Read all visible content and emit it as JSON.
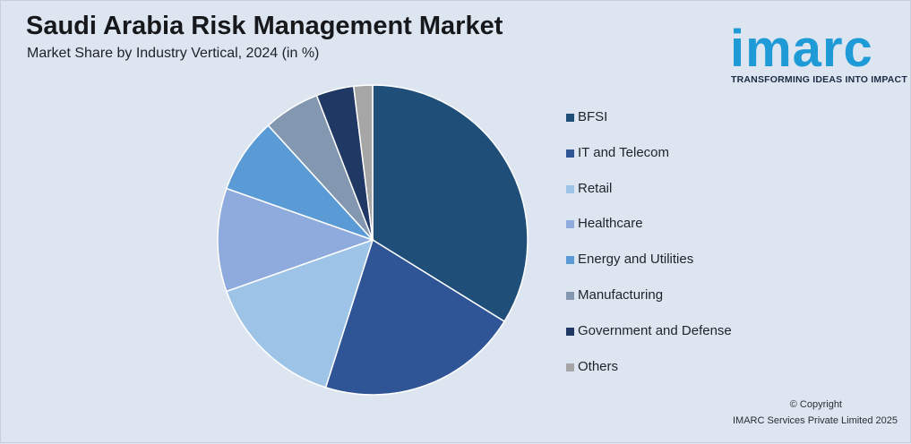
{
  "header": {
    "title": "Saudi Arabia Risk Management Market",
    "subtitle": "Market Share by Industry Vertical, 2024 (in %)"
  },
  "logo": {
    "word": "imarc",
    "tagline": "TRANSFORMING IDEAS INTO IMPACT",
    "color": "#1e9ad6"
  },
  "footer": {
    "copyright": "© Copyright",
    "company": "IMARC Services Private Limited 2025"
  },
  "chart_data": {
    "type": "pie",
    "title": "Saudi Arabia Risk Management Market",
    "subtitle": "Market Share by Industry Vertical, 2024 (in %)",
    "legend_position": "right",
    "categories": [
      "BFSI",
      "IT and Telecom",
      "Retail",
      "Healthcare",
      "Energy and Utilities",
      "Manufacturing",
      "Government and Defense",
      "Others"
    ],
    "values": [
      34.5,
      21.5,
      15,
      11,
      8,
      6,
      4,
      2
    ],
    "colors": [
      "#1f4e79",
      "#2f5597",
      "#9dc3e6",
      "#8faadc",
      "#5b9bd5",
      "#8497b0",
      "#203864",
      "#a6a6a6"
    ]
  }
}
